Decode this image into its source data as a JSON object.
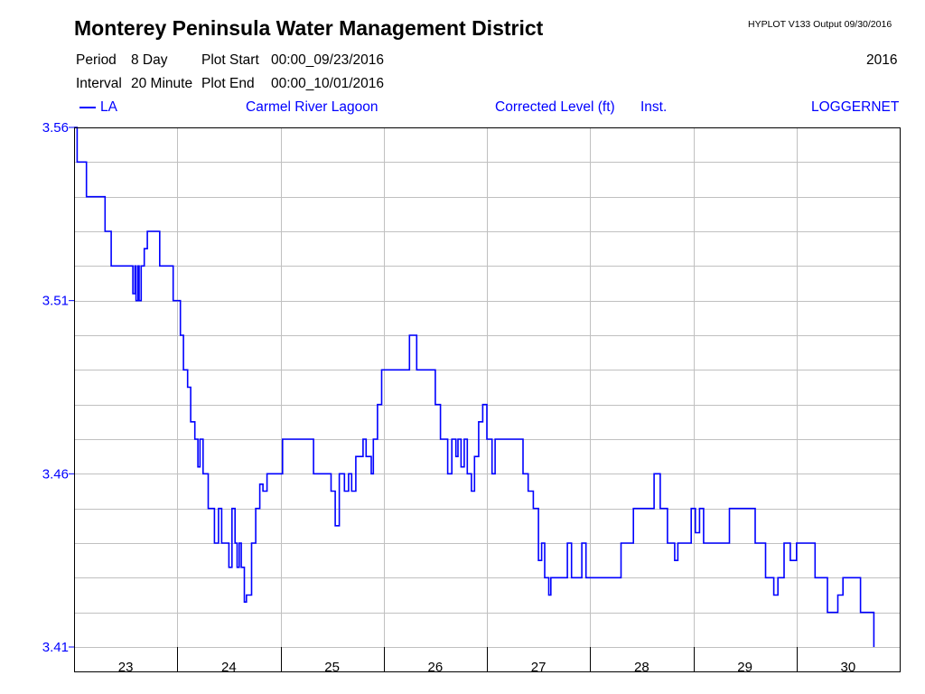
{
  "header": {
    "title": "Monterey Peninsula Water Management District",
    "version_output": "HYPLOT V133  Output 09/30/2016",
    "year": "2016",
    "period_label": "Period",
    "period_value": "8 Day",
    "interval_label": "Interval",
    "interval_value": "20 Minute",
    "plot_start_label": "Plot Start",
    "plot_start_value": "00:00_09/23/2016",
    "plot_end_label": "Plot End",
    "plot_end_value": "00:00_10/01/2016",
    "series_label": "LA",
    "site": "Carmel River Lagoon",
    "variable": "Corrected Level (ft)",
    "stat": "Inst.",
    "source": "LOGGERNET"
  },
  "colors": {
    "series": "#0000ff",
    "grid": "#c0c0c0",
    "frame": "#000000"
  },
  "chart_data": {
    "type": "line",
    "x_unit": "days since 00:00 09/23/2016",
    "x_tick_labels": [
      "23",
      "24",
      "25",
      "26",
      "27",
      "28",
      "29",
      "30"
    ],
    "xlim": [
      0,
      8
    ],
    "ylim": [
      3.41,
      3.56
    ],
    "y_tick_labels": [
      "3.41",
      "3.46",
      "3.51",
      "3.56"
    ],
    "y_gridlines": [
      3.41,
      3.42,
      3.43,
      3.44,
      3.45,
      3.46,
      3.47,
      3.48,
      3.49,
      3.5,
      3.51,
      3.52,
      3.53,
      3.54,
      3.55,
      3.56
    ],
    "grid": true,
    "series": [
      {
        "name": "LA",
        "points": [
          [
            0.0,
            3.56
          ],
          [
            0.03,
            3.55
          ],
          [
            0.12,
            3.54
          ],
          [
            0.3,
            3.53
          ],
          [
            0.36,
            3.52
          ],
          [
            0.55,
            3.52
          ],
          [
            0.57,
            3.512
          ],
          [
            0.59,
            3.52
          ],
          [
            0.6,
            3.51
          ],
          [
            0.62,
            3.52
          ],
          [
            0.63,
            3.51
          ],
          [
            0.65,
            3.52
          ],
          [
            0.68,
            3.525
          ],
          [
            0.71,
            3.53
          ],
          [
            0.8,
            3.53
          ],
          [
            0.83,
            3.52
          ],
          [
            0.93,
            3.52
          ],
          [
            0.96,
            3.51
          ],
          [
            1.03,
            3.5
          ],
          [
            1.06,
            3.49
          ],
          [
            1.1,
            3.485
          ],
          [
            1.13,
            3.475
          ],
          [
            1.17,
            3.47
          ],
          [
            1.2,
            3.462
          ],
          [
            1.22,
            3.47
          ],
          [
            1.25,
            3.46
          ],
          [
            1.3,
            3.45
          ],
          [
            1.36,
            3.44
          ],
          [
            1.4,
            3.45
          ],
          [
            1.43,
            3.44
          ],
          [
            1.47,
            3.44
          ],
          [
            1.5,
            3.433
          ],
          [
            1.53,
            3.45
          ],
          [
            1.56,
            3.44
          ],
          [
            1.58,
            3.433
          ],
          [
            1.6,
            3.44
          ],
          [
            1.62,
            3.433
          ],
          [
            1.65,
            3.423
          ],
          [
            1.67,
            3.425
          ],
          [
            1.72,
            3.44
          ],
          [
            1.76,
            3.45
          ],
          [
            1.8,
            3.457
          ],
          [
            1.83,
            3.455
          ],
          [
            1.87,
            3.46
          ],
          [
            1.97,
            3.46
          ],
          [
            2.02,
            3.47
          ],
          [
            2.3,
            3.47
          ],
          [
            2.32,
            3.46
          ],
          [
            2.45,
            3.46
          ],
          [
            2.49,
            3.455
          ],
          [
            2.53,
            3.445
          ],
          [
            2.57,
            3.46
          ],
          [
            2.62,
            3.455
          ],
          [
            2.66,
            3.46
          ],
          [
            2.69,
            3.455
          ],
          [
            2.73,
            3.465
          ],
          [
            2.77,
            3.465
          ],
          [
            2.8,
            3.47
          ],
          [
            2.83,
            3.465
          ],
          [
            2.88,
            3.46
          ],
          [
            2.9,
            3.47
          ],
          [
            2.94,
            3.48
          ],
          [
            2.98,
            3.49
          ],
          [
            3.22,
            3.49
          ],
          [
            3.25,
            3.5
          ],
          [
            3.3,
            3.5
          ],
          [
            3.32,
            3.49
          ],
          [
            3.45,
            3.49
          ],
          [
            3.5,
            3.48
          ],
          [
            3.55,
            3.47
          ],
          [
            3.62,
            3.46
          ],
          [
            3.66,
            3.47
          ],
          [
            3.7,
            3.465
          ],
          [
            3.72,
            3.47
          ],
          [
            3.75,
            3.462
          ],
          [
            3.78,
            3.47
          ],
          [
            3.81,
            3.46
          ],
          [
            3.85,
            3.455
          ],
          [
            3.88,
            3.465
          ],
          [
            3.92,
            3.475
          ],
          [
            3.96,
            3.48
          ],
          [
            4.0,
            3.47
          ],
          [
            4.05,
            3.46
          ],
          [
            4.08,
            3.47
          ],
          [
            4.3,
            3.47
          ],
          [
            4.35,
            3.46
          ],
          [
            4.4,
            3.455
          ],
          [
            4.45,
            3.45
          ],
          [
            4.5,
            3.435
          ],
          [
            4.53,
            3.44
          ],
          [
            4.56,
            3.43
          ],
          [
            4.6,
            3.425
          ],
          [
            4.62,
            3.43
          ],
          [
            4.75,
            3.43
          ],
          [
            4.78,
            3.44
          ],
          [
            4.82,
            3.43
          ],
          [
            4.88,
            3.43
          ],
          [
            4.92,
            3.44
          ],
          [
            4.96,
            3.43
          ],
          [
            5.3,
            3.44
          ],
          [
            5.42,
            3.45
          ],
          [
            5.62,
            3.46
          ],
          [
            5.68,
            3.45
          ],
          [
            5.75,
            3.44
          ],
          [
            5.82,
            3.435
          ],
          [
            5.85,
            3.44
          ],
          [
            5.95,
            3.44
          ],
          [
            5.98,
            3.45
          ],
          [
            6.02,
            3.443
          ],
          [
            6.06,
            3.45
          ],
          [
            6.1,
            3.44
          ],
          [
            6.3,
            3.44
          ],
          [
            6.35,
            3.45
          ],
          [
            6.55,
            3.45
          ],
          [
            6.6,
            3.44
          ],
          [
            6.7,
            3.43
          ],
          [
            6.78,
            3.425
          ],
          [
            6.82,
            3.43
          ],
          [
            6.88,
            3.44
          ],
          [
            6.94,
            3.435
          ],
          [
            7.0,
            3.44
          ],
          [
            7.12,
            3.44
          ],
          [
            7.18,
            3.43
          ],
          [
            7.3,
            3.42
          ],
          [
            7.4,
            3.425
          ],
          [
            7.45,
            3.43
          ],
          [
            7.62,
            3.42
          ],
          [
            7.75,
            3.41
          ]
        ]
      }
    ]
  }
}
